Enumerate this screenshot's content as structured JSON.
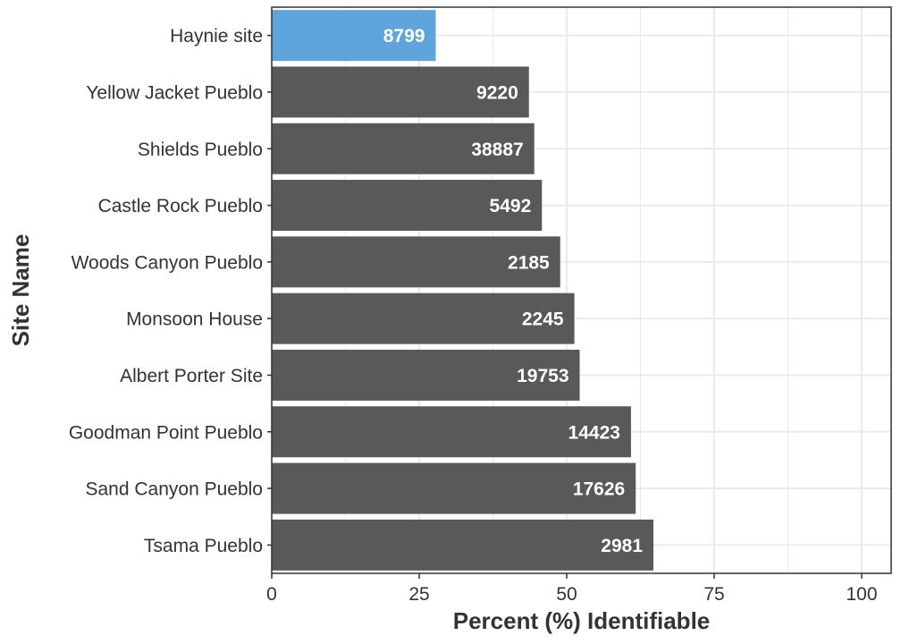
{
  "chart_data": {
    "type": "bar",
    "orientation": "horizontal",
    "xlabel": "Percent (%) Identifiable",
    "ylabel": "Site Name",
    "xlim": [
      0,
      105
    ],
    "x_ticks": [
      0,
      25,
      50,
      75,
      100
    ],
    "x_tick_labels": [
      "0",
      "25",
      "50",
      "75",
      "100"
    ],
    "grid": true,
    "categories": [
      "Haynie site",
      "Yellow Jacket Pueblo",
      "Shields Pueblo",
      "Castle Rock Pueblo",
      "Woods Canyon Pueblo",
      "Monsoon House",
      "Albert Porter Site",
      "Goodman Point Pueblo",
      "Sand Canyon Pueblo",
      "Tsama Pueblo"
    ],
    "values": [
      27.8,
      43.6,
      44.5,
      45.8,
      48.9,
      51.3,
      52.2,
      60.9,
      61.7,
      64.7
    ],
    "bar_labels": [
      "8799",
      "9220",
      "38887",
      "5492",
      "2185",
      "2245",
      "19753",
      "14423",
      "17626",
      "2981"
    ],
    "highlight_index": 0,
    "colors": {
      "highlight": "#5DA5DA",
      "default": "#595959",
      "grid": "#EBEBEB",
      "axis": "#333333"
    }
  }
}
